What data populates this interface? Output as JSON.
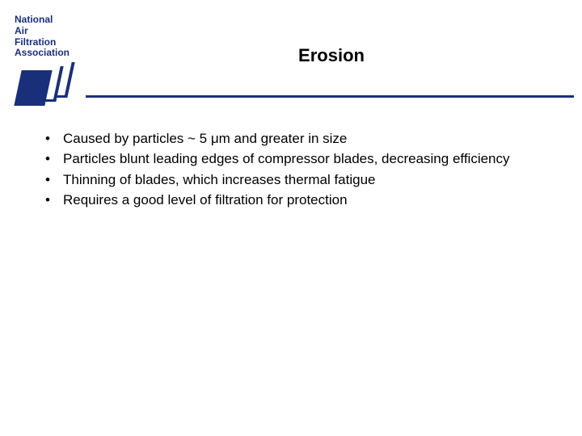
{
  "logo": {
    "line1": "National",
    "line2": "Air",
    "line3": "Filtration",
    "line4": "Association",
    "text_color": "#1a2f7a",
    "panel_color": "#1a2f7a"
  },
  "title": "Erosion",
  "rule_color": "#1a2f7a",
  "bullets": [
    "Caused by particles ~ 5 μm and greater in size",
    "Particles blunt leading edges of compressor blades, decreasing efficiency",
    "Thinning of blades, which increases thermal fatigue",
    "Requires a good level of filtration for protection"
  ],
  "colors": {
    "background": "#ffffff",
    "text": "#000000",
    "accent": "#1a2f7a"
  }
}
